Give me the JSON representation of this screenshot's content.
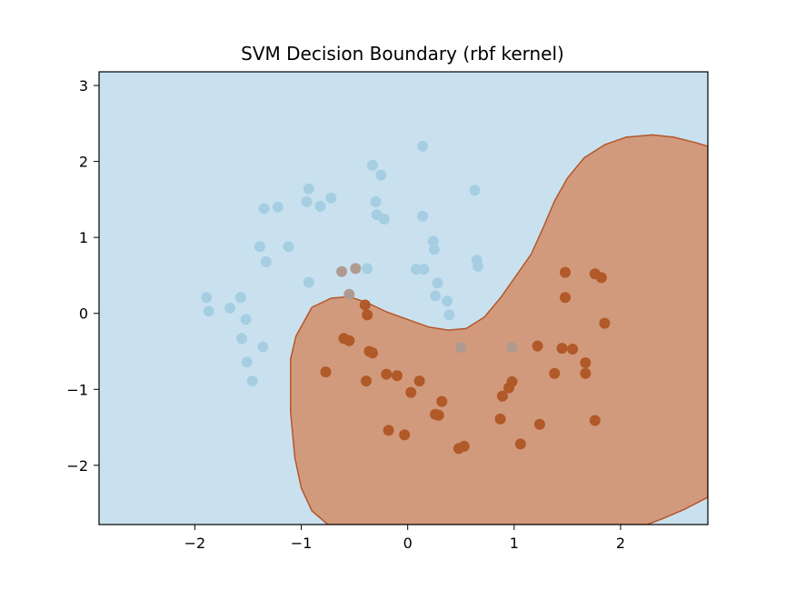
{
  "chart_data": {
    "type": "scatter",
    "title": "SVM Decision Boundary (rbf kernel)",
    "xlabel": "",
    "ylabel": "",
    "xlim": [
      -2.9,
      2.82
    ],
    "ylim": [
      -2.78,
      3.18
    ],
    "xticks": [
      -2,
      -1,
      0,
      1,
      2
    ],
    "yticks": [
      -2,
      -1,
      0,
      1,
      2,
      3
    ],
    "grid": false,
    "colors": {
      "class0_region": "#c9e1ef",
      "class1_region": "#d19a7c",
      "boundary": "#b5562a",
      "class0_point": "#a6cee3",
      "class1_point": "#b15928",
      "misclassified_point": "#b09a90"
    },
    "decision_region_class1": [
      [
        -0.75,
        -2.78
      ],
      [
        -0.9,
        -2.6
      ],
      [
        -1.0,
        -2.3
      ],
      [
        -1.06,
        -1.9
      ],
      [
        -1.1,
        -1.3
      ],
      [
        -1.1,
        -0.6
      ],
      [
        -1.05,
        -0.3
      ],
      [
        -0.9,
        0.08
      ],
      [
        -0.72,
        0.2
      ],
      [
        -0.55,
        0.22
      ],
      [
        -0.38,
        0.14
      ],
      [
        -0.2,
        0.02
      ],
      [
        0.0,
        -0.08
      ],
      [
        0.2,
        -0.18
      ],
      [
        0.38,
        -0.22
      ],
      [
        0.55,
        -0.2
      ],
      [
        0.72,
        -0.05
      ],
      [
        0.88,
        0.22
      ],
      [
        1.02,
        0.5
      ],
      [
        1.16,
        0.78
      ],
      [
        1.28,
        1.15
      ],
      [
        1.38,
        1.48
      ],
      [
        1.5,
        1.78
      ],
      [
        1.66,
        2.05
      ],
      [
        1.85,
        2.22
      ],
      [
        2.05,
        2.32
      ],
      [
        2.3,
        2.35
      ],
      [
        2.5,
        2.32
      ],
      [
        2.7,
        2.25
      ],
      [
        2.82,
        2.2
      ],
      [
        2.82,
        -2.42
      ],
      [
        2.6,
        -2.58
      ],
      [
        2.4,
        -2.7
      ],
      [
        2.25,
        -2.78
      ]
    ],
    "series": [
      {
        "class": 0,
        "points": [
          [
            -1.89,
            0.21
          ],
          [
            -1.87,
            0.03
          ],
          [
            -1.67,
            0.07
          ],
          [
            -1.57,
            0.21
          ],
          [
            -1.56,
            -0.33
          ],
          [
            -1.52,
            -0.08
          ],
          [
            -1.51,
            -0.64
          ],
          [
            -1.46,
            -0.89
          ],
          [
            -1.39,
            0.88
          ],
          [
            -1.36,
            -0.44
          ],
          [
            -1.35,
            1.38
          ],
          [
            -1.33,
            0.68
          ],
          [
            -1.22,
            1.4
          ],
          [
            -1.12,
            0.88
          ],
          [
            -0.95,
            1.47
          ],
          [
            -0.93,
            1.64
          ],
          [
            -0.93,
            0.41
          ],
          [
            -0.82,
            1.41
          ],
          [
            -0.72,
            1.52
          ],
          [
            -0.38,
            0.59
          ],
          [
            -0.33,
            1.95
          ],
          [
            -0.3,
            1.47
          ],
          [
            -0.29,
            1.3
          ],
          [
            -0.25,
            1.82
          ],
          [
            -0.22,
            1.24
          ],
          [
            0.08,
            0.58
          ],
          [
            0.14,
            2.2
          ],
          [
            0.14,
            1.28
          ],
          [
            0.15,
            0.58
          ],
          [
            0.24,
            0.95
          ],
          [
            0.25,
            0.84
          ],
          [
            0.26,
            0.23
          ],
          [
            0.28,
            0.4
          ],
          [
            0.37,
            0.16
          ],
          [
            0.39,
            -0.02
          ],
          [
            0.63,
            1.62
          ],
          [
            0.65,
            0.7
          ],
          [
            0.66,
            0.62
          ]
        ]
      },
      {
        "class": 1,
        "points": [
          [
            -0.77,
            -0.77
          ],
          [
            -0.6,
            -0.33
          ],
          [
            -0.55,
            -0.36
          ],
          [
            -0.4,
            0.11
          ],
          [
            -0.39,
            -0.89
          ],
          [
            -0.38,
            -0.02
          ],
          [
            -0.36,
            -0.5
          ],
          [
            -0.33,
            -0.52
          ],
          [
            -0.2,
            -0.8
          ],
          [
            -0.18,
            -1.54
          ],
          [
            -0.1,
            -0.82
          ],
          [
            -0.03,
            -1.6
          ],
          [
            0.03,
            -1.04
          ],
          [
            0.11,
            -0.89
          ],
          [
            0.26,
            -1.33
          ],
          [
            0.29,
            -1.34
          ],
          [
            0.32,
            -1.16
          ],
          [
            0.48,
            -1.78
          ],
          [
            0.53,
            -1.75
          ],
          [
            0.87,
            -1.39
          ],
          [
            0.89,
            -1.09
          ],
          [
            0.95,
            -0.98
          ],
          [
            0.98,
            -0.9
          ],
          [
            1.06,
            -1.72
          ],
          [
            1.22,
            -0.43
          ],
          [
            1.24,
            -1.46
          ],
          [
            1.38,
            -0.79
          ],
          [
            1.45,
            -0.46
          ],
          [
            1.48,
            0.54
          ],
          [
            1.48,
            0.21
          ],
          [
            1.55,
            -0.47
          ],
          [
            1.67,
            -0.65
          ],
          [
            1.67,
            -0.79
          ],
          [
            1.76,
            0.52
          ],
          [
            1.76,
            -1.41
          ],
          [
            1.82,
            0.47
          ],
          [
            1.85,
            -0.13
          ]
        ]
      },
      {
        "class": "misclassified",
        "points": [
          [
            -0.62,
            0.55
          ],
          [
            -0.49,
            0.59
          ],
          [
            -0.55,
            0.25
          ],
          [
            0.5,
            -0.45
          ],
          [
            0.98,
            -0.45
          ]
        ]
      }
    ]
  }
}
